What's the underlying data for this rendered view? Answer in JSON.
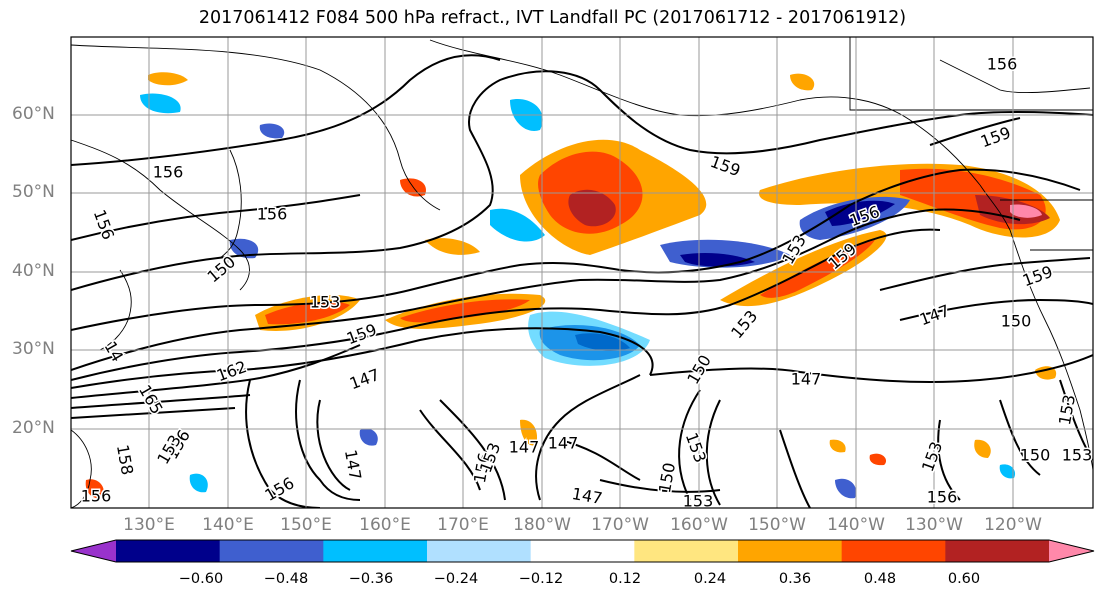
{
  "figure": {
    "title": "2017061412 F084 500 hPa refract., IVT Landfall PC (2017061712 - 2017061912)"
  },
  "map": {
    "projection": "cylindrical",
    "lat_range": [
      "10°N",
      "70°N"
    ],
    "lon_range": [
      "120°E",
      "120°W"
    ],
    "gridlines": true,
    "lat_labels": [
      "60°N",
      "50°N",
      "40°N",
      "30°N",
      "20°N"
    ],
    "lon_labels": [
      "130°E",
      "140°E",
      "150°E",
      "160°E",
      "170°E",
      "180°W",
      "170°W",
      "160°W",
      "150°W",
      "140°W",
      "130°W",
      "120°W"
    ],
    "contour_labels": [
      "156",
      "156",
      "156",
      "150",
      "153",
      "159",
      "162",
      "14",
      "165",
      "156",
      "158",
      "156",
      "147",
      "147",
      "147",
      "147",
      "147",
      "153",
      "156",
      "153",
      "150",
      "159",
      "156",
      "153",
      "159",
      "153",
      "150",
      "153",
      "147",
      "159",
      "156",
      "159",
      "147",
      "150",
      "153",
      "156",
      "150",
      "153",
      "153",
      "156",
      "153"
    ]
  },
  "colorbar": {
    "ticks": [
      "−0.60",
      "−0.48",
      "−0.36",
      "−0.24",
      "−0.12",
      "0.12",
      "0.24",
      "0.36",
      "0.48",
      "0.60"
    ],
    "colors": [
      "#9932cc",
      "#00008b",
      "#3f5fcf",
      "#00bfff",
      "#b0e0ff",
      "#ffffff",
      "#ffe680",
      "#ffa500",
      "#ff4500",
      "#b22222",
      "#ff88aa"
    ]
  }
}
